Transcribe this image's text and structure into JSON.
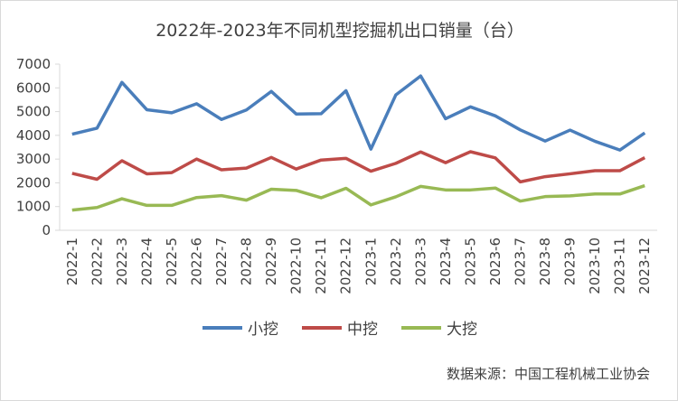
{
  "chart_data": {
    "type": "line",
    "title": "2022年-2023年不同机型挖掘机出口销量（台）",
    "xlabel": "",
    "ylabel": "",
    "ylim": [
      0,
      7000
    ],
    "yticks": [
      0,
      1000,
      2000,
      3000,
      4000,
      5000,
      6000,
      7000
    ],
    "grid": false,
    "legend": "bottom",
    "categories": [
      "2022-1",
      "2022-2",
      "2022-3",
      "2022-4",
      "2022-5",
      "2022-6",
      "2022-7",
      "2022-8",
      "2022-9",
      "2022-10",
      "2022-11",
      "2022-12",
      "2023-1",
      "2023-2",
      "2023-3",
      "2023-4",
      "2023-5",
      "2023-6",
      "2023-7",
      "2023-8",
      "2023-9",
      "2023-10",
      "2023-11",
      "2023-12"
    ],
    "series": [
      {
        "name": "小挖",
        "color": "#4a7ebb",
        "values": [
          4050,
          4300,
          6230,
          5080,
          4950,
          5330,
          4670,
          5070,
          5850,
          4900,
          4910,
          5880,
          3420,
          5700,
          6500,
          4700,
          5200,
          4820,
          4230,
          3760,
          4220,
          3750,
          3380,
          4100
        ]
      },
      {
        "name": "中挖",
        "color": "#be4b48",
        "values": [
          2400,
          2150,
          2930,
          2380,
          2430,
          3000,
          2550,
          2620,
          3070,
          2580,
          2960,
          3030,
          2490,
          2820,
          3300,
          2850,
          3310,
          3050,
          2040,
          2260,
          2380,
          2510,
          2510,
          3060
        ]
      },
      {
        "name": "大挖",
        "color": "#98b954",
        "values": [
          850,
          960,
          1330,
          1050,
          1050,
          1380,
          1460,
          1270,
          1730,
          1680,
          1370,
          1770,
          1070,
          1410,
          1850,
          1700,
          1700,
          1780,
          1230,
          1420,
          1450,
          1530,
          1530,
          1880
        ]
      }
    ],
    "source": "数据来源：中国工程机械工业协会"
  }
}
